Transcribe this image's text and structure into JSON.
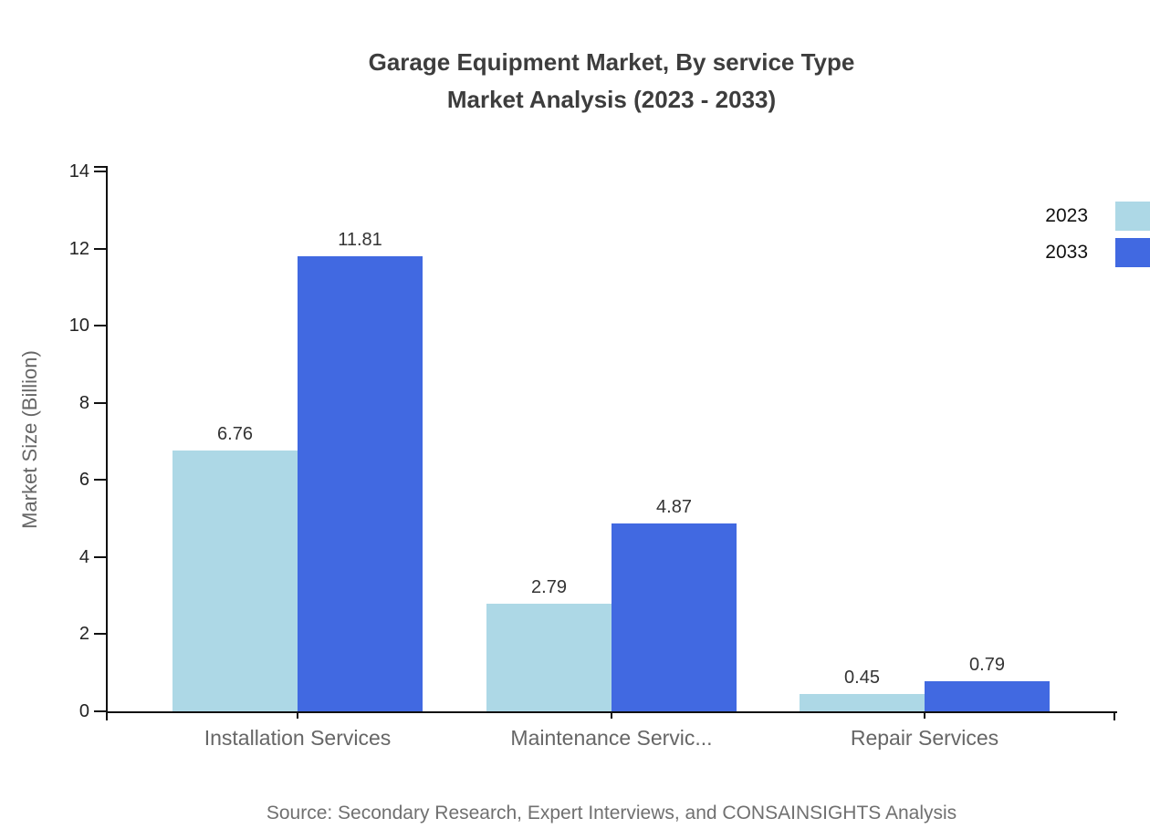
{
  "title": {
    "line1": "Garage Equipment Market, By service Type",
    "line2": "Market Analysis (2023 - 2033)"
  },
  "source_note": "Source: Secondary Research, Expert Interviews, and CONSAINSIGHTS Analysis",
  "legend": {
    "position": "top-right",
    "items": [
      {
        "label": "2023",
        "color": "#ADD8E6"
      },
      {
        "label": "2033",
        "color": "#4169E1"
      }
    ]
  },
  "colors": {
    "series_2023": "#ADD8E6",
    "series_2033": "#4169E1",
    "axis": "#111111",
    "title_text": "#3D3D3D",
    "category_text": "#666666",
    "tick_text": "#222222",
    "value_text": "#333333",
    "source_text": "#707070",
    "background": "#FFFFFF"
  },
  "chart_data": {
    "type": "bar",
    "title": "Garage Equipment Market, By service Type Market Analysis (2023 - 2033)",
    "categories": [
      "Installation Services",
      "Maintenance Servic...",
      "Repair Services"
    ],
    "series": [
      {
        "name": "2023",
        "color": "#ADD8E6",
        "values": [
          6.76,
          2.79,
          0.45
        ]
      },
      {
        "name": "2033",
        "color": "#4169E1",
        "values": [
          11.81,
          4.87,
          0.79
        ]
      }
    ],
    "value_labels": true,
    "xlabel": "",
    "ylabel": "Market Size (Billion)",
    "ylim": [
      0,
      14
    ],
    "yticks": [
      0,
      2,
      4,
      6,
      8,
      10,
      12,
      14
    ],
    "grid": false,
    "legend_position": "top-right"
  }
}
